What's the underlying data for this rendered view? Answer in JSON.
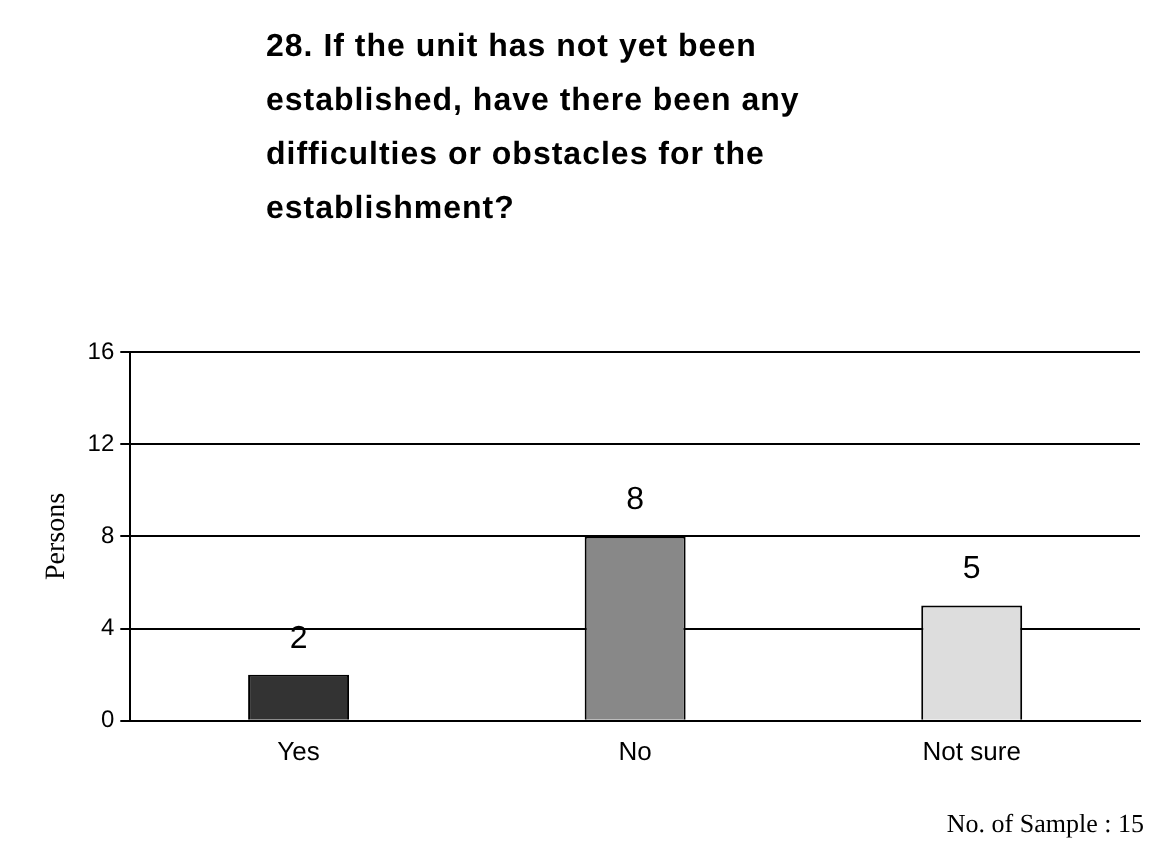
{
  "chart_data": {
    "type": "bar",
    "title": "28. If the unit has not yet been established, have there been any difficulties or obstacles for the establishment?",
    "categories": [
      "Yes",
      "No",
      "Not sure"
    ],
    "values": [
      2,
      8,
      5
    ],
    "colors": [
      "#333333",
      "#888888",
      "#dddddd"
    ],
    "ylabel": "Persons",
    "ylim": [
      0,
      16
    ],
    "yticks": [
      0,
      4,
      8,
      12,
      16
    ],
    "grid": "y",
    "legend": false,
    "data_labels": true,
    "annotations": [
      "No. of Sample : 15"
    ]
  }
}
